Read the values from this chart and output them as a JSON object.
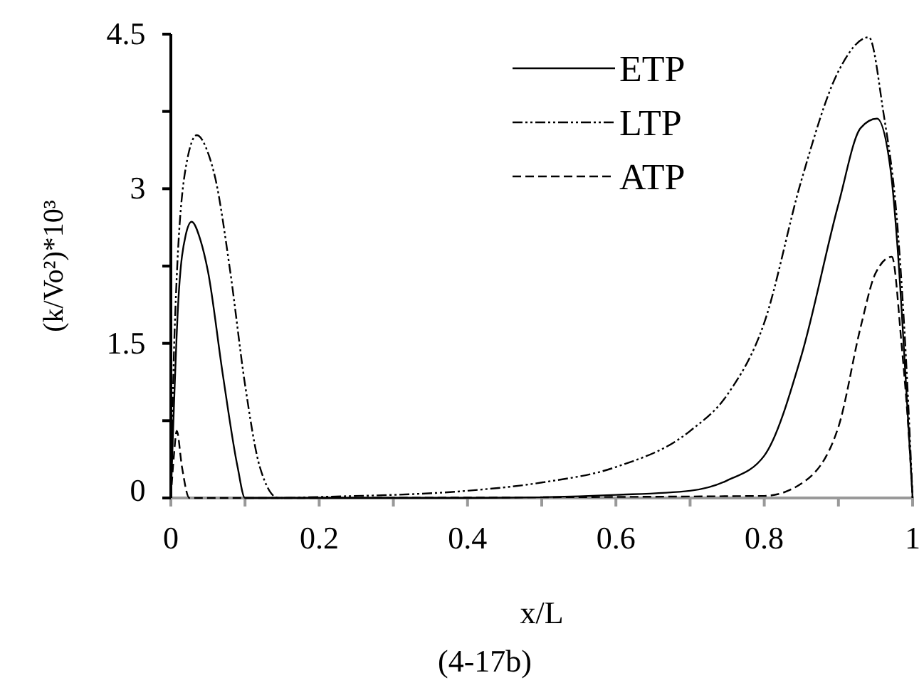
{
  "chart_data": {
    "type": "line",
    "xlabel": "x/L",
    "ylabel": "(k/Vo²)*10³",
    "annotations": [
      "(4-17b)"
    ],
    "xlim": [
      0,
      1
    ],
    "ylim": [
      0,
      4.5
    ],
    "xticks": [
      0,
      {
        "value": 0.1,
        "label": null
      },
      0.2,
      {
        "value": 0.3,
        "label": null
      },
      0.4,
      {
        "value": 0.5,
        "label": null
      },
      0.6,
      {
        "value": 0.7,
        "label": null
      },
      0.8,
      {
        "value": 0.9,
        "label": null
      },
      1
    ],
    "yticks": [
      0,
      {
        "value": 0.75,
        "label": null
      },
      1.5,
      {
        "value": 2.25,
        "label": null
      },
      3,
      {
        "value": 3.75,
        "label": null
      },
      4.5
    ],
    "legend": "top right",
    "grid": false,
    "marker": "none",
    "series": [
      {
        "name": "ETP",
        "color": "#000000",
        "line_style": "solid",
        "x": [
          0,
          0.01,
          0.02,
          0.028,
          0.04,
          0.05,
          0.07,
          0.09,
          0.1,
          0.2,
          0.4,
          0.6,
          0.7,
          0.75,
          0.8,
          0.85,
          0.9,
          0.93,
          0.952,
          0.97,
          0.98,
          0.99,
          1
        ],
        "values": [
          0,
          1.9,
          2.55,
          2.68,
          2.5,
          2.2,
          1.2,
          0.3,
          0,
          0,
          0,
          0.03,
          0.07,
          0.17,
          0.41,
          1.38,
          2.85,
          3.59,
          3.68,
          3.2,
          2.4,
          1.24,
          0
        ]
      },
      {
        "name": "LTP",
        "color": "#000000",
        "line_style": "dotted",
        "x": [
          0,
          0.005,
          0.02,
          0.035,
          0.05,
          0.06,
          0.08,
          0.1,
          0.12,
          0.145,
          0.2,
          0.4,
          0.5,
          0.6,
          0.7,
          0.75,
          0.8,
          0.85,
          0.9,
          0.941,
          0.96,
          0.98,
          0.99,
          1
        ],
        "values": [
          0,
          1.6,
          3.2,
          3.52,
          3.35,
          3.1,
          2.2,
          1.1,
          0.3,
          0,
          0.01,
          0.07,
          0.15,
          0.3,
          0.65,
          1.0,
          1.7,
          3.08,
          4.14,
          4.47,
          3.77,
          2.6,
          1.5,
          0
        ]
      },
      {
        "name": "ATP",
        "color": "#000000",
        "line_style": "dashed",
        "x": [
          0,
          0.004,
          0.008,
          0.015,
          0.025,
          0.1,
          0.8,
          0.85,
          0.9,
          0.93,
          0.95,
          0.972,
          0.985,
          0.995,
          1
        ],
        "values": [
          0,
          0.4,
          0.65,
          0.3,
          0,
          0,
          0.02,
          0.14,
          0.69,
          1.66,
          2.18,
          2.34,
          1.5,
          0.6,
          0
        ]
      }
    ]
  }
}
